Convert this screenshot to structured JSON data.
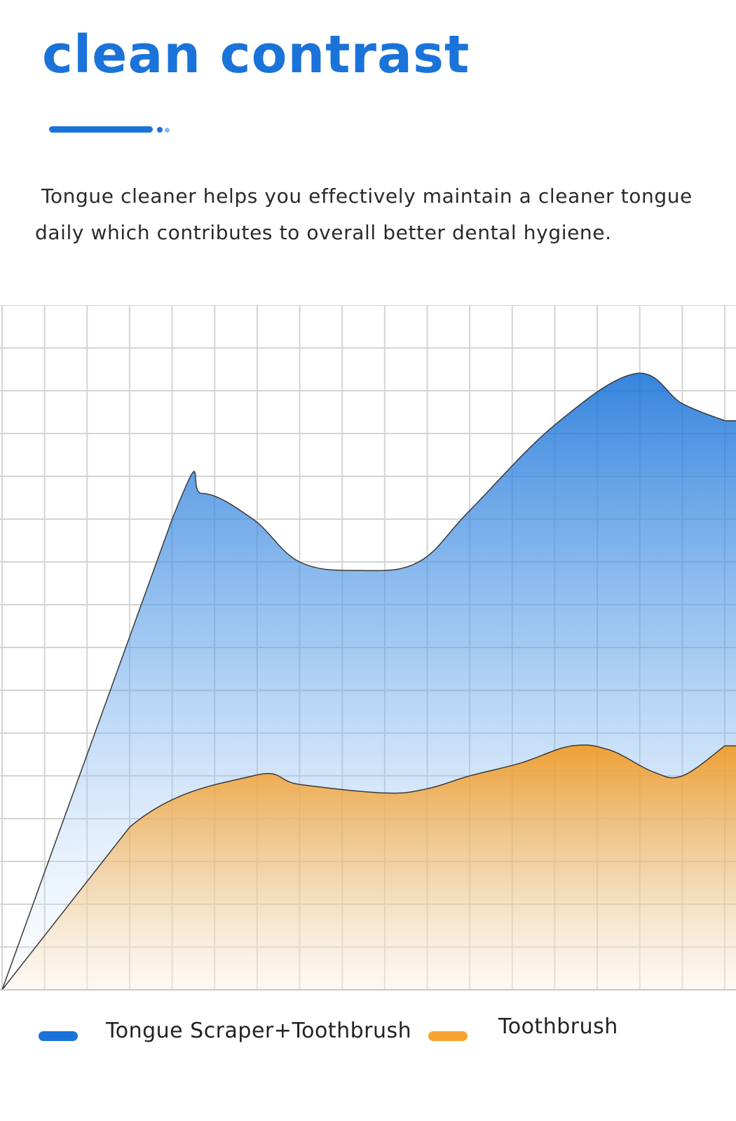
{
  "header": {
    "title": "clean  contrast",
    "description_line1": "Tongue cleaner helps you effectively maintain a cleaner tongue",
    "description_line2": "daily which contributes to overall better dental hygiene."
  },
  "colors": {
    "accent": "#1a73d9",
    "series_blue": "#1a73d9",
    "series_orange": "#f8a431",
    "grid": "#d4d4d4"
  },
  "chart_data": {
    "type": "area",
    "title": "",
    "xlabel": "",
    "ylabel": "",
    "grid": true,
    "legend_position": "bottom",
    "xlim": [
      0,
      17
    ],
    "ylim": [
      0,
      16
    ],
    "series": [
      {
        "name": "Tongue Scraper+Toothbrush",
        "color": "#1a73d9",
        "x": [
          0,
          4,
          4.7,
          5.9,
          7,
          8.4,
          9.8,
          11,
          13,
          14.9,
          16,
          17
        ],
        "y": [
          0,
          11,
          11.6,
          11,
          10,
          9.8,
          10,
          11.2,
          13.2,
          14.4,
          13.7,
          13.3
        ]
      },
      {
        "name": "Toothbrush",
        "color": "#f8a431",
        "x": [
          0,
          3,
          5.9,
          7,
          9,
          10,
          11,
          12.2,
          13.4,
          14.3,
          15.3,
          16,
          17
        ],
        "y": [
          0,
          3.8,
          5,
          4.8,
          4.6,
          4.7,
          5,
          5.3,
          5.7,
          5.6,
          5.1,
          5,
          5.7
        ]
      }
    ]
  }
}
